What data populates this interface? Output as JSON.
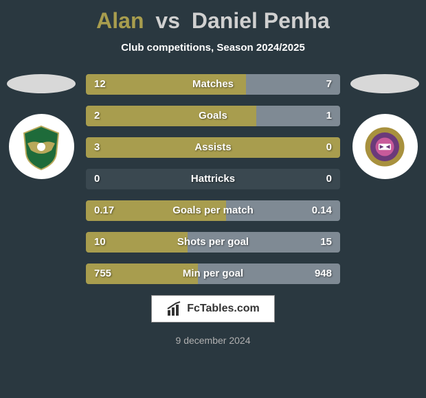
{
  "header": {
    "player1": "Alan",
    "vs": "vs",
    "player2": "Daniel Penha",
    "subtitle": "Club competitions, Season 2024/2025",
    "colors": {
      "player1": "#a89d4e",
      "vs": "#d0d0d0",
      "player2": "#d0d0d0"
    }
  },
  "stats": [
    {
      "label": "Matches",
      "left_val": "12",
      "right_val": "7",
      "left_pct": 63,
      "right_pct": 37
    },
    {
      "label": "Goals",
      "left_val": "2",
      "right_val": "1",
      "left_pct": 67,
      "right_pct": 33
    },
    {
      "label": "Assists",
      "left_val": "3",
      "right_val": "0",
      "left_pct": 100,
      "right_pct": 0
    },
    {
      "label": "Hattricks",
      "left_val": "0",
      "right_val": "0",
      "left_pct": 0,
      "right_pct": 0
    },
    {
      "label": "Goals per match",
      "left_val": "0.17",
      "right_val": "0.14",
      "left_pct": 55,
      "right_pct": 45
    },
    {
      "label": "Shots per goal",
      "left_val": "10",
      "right_val": "15",
      "left_pct": 40,
      "right_pct": 60
    },
    {
      "label": "Min per goal",
      "left_val": "755",
      "right_val": "948",
      "left_pct": 44,
      "right_pct": 56
    }
  ],
  "colors": {
    "bar_left": "#a89d4e",
    "bar_right": "#7f8a94",
    "bar_bg": "#3a4850",
    "page_bg": "#2a3840"
  },
  "footer": {
    "logo_text": "FcTables.com",
    "date": "9 december 2024"
  },
  "badges": {
    "left_crest_bg": "#ffffff",
    "left_crest_primary": "#1e6b3a",
    "left_crest_secondary": "#b8a85a",
    "right_crest_bg": "#ffffff",
    "right_crest_primary": "#a8913e",
    "right_crest_inner": "#6b3a7a"
  }
}
